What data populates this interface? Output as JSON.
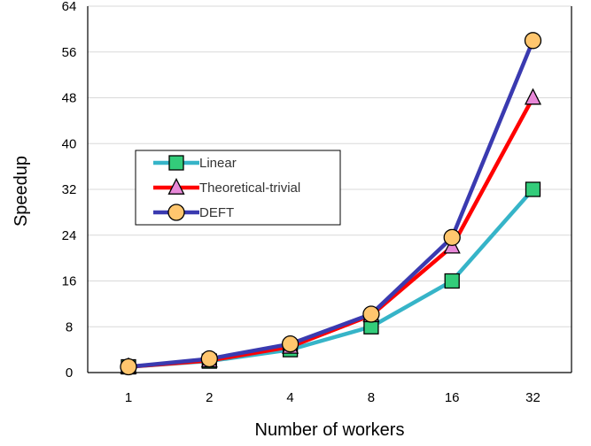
{
  "chart_data": {
    "type": "line",
    "title": "",
    "xlabel": "Number of workers",
    "ylabel": "Speedup",
    "categories": [
      "1",
      "2",
      "4",
      "8",
      "16",
      "32"
    ],
    "ylim": [
      0,
      64
    ],
    "yticks": [
      0,
      8,
      16,
      24,
      32,
      40,
      48,
      56,
      64
    ],
    "grid": true,
    "legend_position": "middle-left",
    "series": [
      {
        "name": "Linear",
        "values": [
          1,
          2,
          4,
          8,
          16,
          32
        ],
        "color": "#36B4C8",
        "marker": "square",
        "marker_fill": "#33CC7A"
      },
      {
        "name": "Theoretical-trivial",
        "values": [
          1,
          2.1,
          4.5,
          10,
          22,
          48
        ],
        "color": "#FF0000",
        "marker": "triangle",
        "marker_fill": "#E888D8"
      },
      {
        "name": "DEFT",
        "values": [
          1,
          2.4,
          5,
          10.2,
          23.6,
          58
        ],
        "color": "#3A3AB0",
        "marker": "circle",
        "marker_fill": "#FFC66E"
      }
    ]
  }
}
